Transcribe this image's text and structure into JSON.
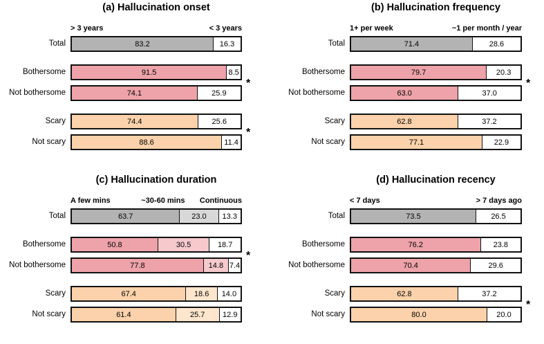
{
  "figure": {
    "background": "#ffffff",
    "significance_marker": "*"
  },
  "palettes": {
    "gray": [
      "#b3b3b3",
      "#d8d8d8"
    ],
    "pink": [
      "#eda3a9",
      "#f6cacd"
    ],
    "peach": [
      "#fbd2ab",
      "#fde6cd"
    ],
    "rest": "#ffffff",
    "border": "#111111"
  },
  "chart_data": [
    {
      "id": "a",
      "type": "bar",
      "stacked": true,
      "orientation": "horizontal",
      "units": "percent",
      "title": "(a) Hallucination onset",
      "headers": [
        {
          "text": "> 3 years",
          "align": "left"
        },
        {
          "text": "< 3 years",
          "align": "right"
        }
      ],
      "groups": [
        {
          "significant": false,
          "rows": [
            {
              "label": "Total",
              "palette": "gray",
              "values": [
                83.2,
                16.3
              ]
            }
          ]
        },
        {
          "significant": true,
          "rows": [
            {
              "label": "Bothersome",
              "palette": "pink",
              "values": [
                91.5,
                8.5
              ]
            },
            {
              "label": "Not bothersome",
              "palette": "pink",
              "values": [
                74.1,
                25.9
              ]
            }
          ]
        },
        {
          "significant": true,
          "rows": [
            {
              "label": "Scary",
              "palette": "peach",
              "values": [
                74.4,
                25.6
              ]
            },
            {
              "label": "Not scary",
              "palette": "peach",
              "values": [
                88.6,
                11.4
              ]
            }
          ]
        }
      ]
    },
    {
      "id": "b",
      "type": "bar",
      "stacked": true,
      "orientation": "horizontal",
      "units": "percent",
      "title": "(b) Hallucination frequency",
      "headers": [
        {
          "text": "1+ per week",
          "align": "left"
        },
        {
          "text": "~1 per month / year",
          "align": "right"
        }
      ],
      "groups": [
        {
          "significant": false,
          "rows": [
            {
              "label": "Total",
              "palette": "gray",
              "values": [
                71.4,
                28.6
              ]
            }
          ]
        },
        {
          "significant": true,
          "rows": [
            {
              "label": "Bothersome",
              "palette": "pink",
              "values": [
                79.7,
                20.3
              ]
            },
            {
              "label": "Not bothersome",
              "palette": "pink",
              "values": [
                63.0,
                37.0
              ]
            }
          ]
        },
        {
          "significant": false,
          "rows": [
            {
              "label": "Scary",
              "palette": "peach",
              "values": [
                62.8,
                37.2
              ]
            },
            {
              "label": "Not scary",
              "palette": "peach",
              "values": [
                77.1,
                22.9
              ]
            }
          ]
        }
      ]
    },
    {
      "id": "c",
      "type": "bar",
      "stacked": true,
      "orientation": "horizontal",
      "units": "percent",
      "title": "(c) Hallucination duration",
      "headers": [
        {
          "text": "A few mins",
          "align": "left"
        },
        {
          "text": "~30-60 mins",
          "align": "center"
        },
        {
          "text": "Continuous",
          "align": "right"
        }
      ],
      "groups": [
        {
          "significant": false,
          "rows": [
            {
              "label": "Total",
              "palette": "gray",
              "values": [
                63.7,
                23.0,
                13.3
              ]
            }
          ]
        },
        {
          "significant": true,
          "rows": [
            {
              "label": "Bothersome",
              "palette": "pink",
              "values": [
                50.8,
                30.5,
                18.7
              ]
            },
            {
              "label": "Not bothersome",
              "palette": "pink",
              "values": [
                77.8,
                14.8,
                7.4
              ]
            }
          ]
        },
        {
          "significant": false,
          "rows": [
            {
              "label": "Scary",
              "palette": "peach",
              "values": [
                67.4,
                18.6,
                14.0
              ]
            },
            {
              "label": "Not scary",
              "palette": "peach",
              "values": [
                61.4,
                25.7,
                12.9
              ]
            }
          ]
        }
      ]
    },
    {
      "id": "d",
      "type": "bar",
      "stacked": true,
      "orientation": "horizontal",
      "units": "percent",
      "title": "(d) Hallucination recency",
      "headers": [
        {
          "text": "< 7 days",
          "align": "left"
        },
        {
          "text": "> 7 days ago",
          "align": "right"
        }
      ],
      "groups": [
        {
          "significant": false,
          "rows": [
            {
              "label": "Total",
              "palette": "gray",
              "values": [
                73.5,
                26.5
              ]
            }
          ]
        },
        {
          "significant": false,
          "rows": [
            {
              "label": "Bothersome",
              "palette": "pink",
              "values": [
                76.2,
                23.8
              ]
            },
            {
              "label": "Not bothersome",
              "palette": "pink",
              "values": [
                70.4,
                29.6
              ]
            }
          ]
        },
        {
          "significant": true,
          "rows": [
            {
              "label": "Scary",
              "palette": "peach",
              "values": [
                62.8,
                37.2
              ]
            },
            {
              "label": "Not scary",
              "palette": "peach",
              "values": [
                80.0,
                20.0
              ]
            }
          ]
        }
      ]
    }
  ]
}
